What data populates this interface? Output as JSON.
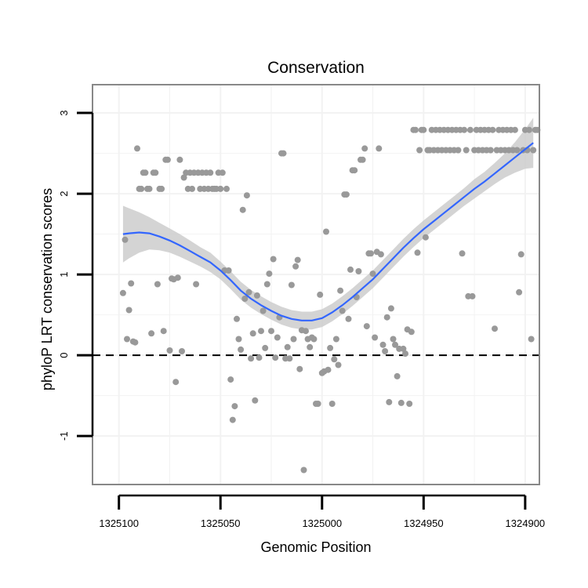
{
  "chart_data": {
    "type": "scatter",
    "title": "Conservation",
    "xlabel": "Genomic Position",
    "ylabel": "phyloP LRT conservation scores",
    "x_reversed": true,
    "xlim": [
      1325113,
      1324893
    ],
    "ylim": [
      -1.6,
      3.35
    ],
    "xticks": [
      1325100,
      1325050,
      1325000,
      1324950,
      1324900
    ],
    "xtick_labels": [
      "1325100",
      "1325050",
      "1325000",
      "1324950",
      "1324900"
    ],
    "yticks": [
      -1,
      0,
      1,
      2,
      3
    ],
    "ytick_labels": [
      "-1",
      "0",
      "1",
      "2",
      "3"
    ],
    "grid": true,
    "reference_line": {
      "y": 0,
      "style": "dashed"
    },
    "colors": {
      "points": "#999999",
      "smooth": "#3366ff",
      "band": "#cccccc",
      "panel_border": "#888888",
      "grid": "#f2f2f2"
    },
    "series": [
      {
        "type": "scatter",
        "points": [
          [
            1325098,
            0.77
          ],
          [
            1325097,
            1.43
          ],
          [
            1325096,
            0.2
          ],
          [
            1325095,
            0.56
          ],
          [
            1325094,
            0.89
          ],
          [
            1325093,
            0.17
          ],
          [
            1325092,
            0.16
          ],
          [
            1325091,
            2.56
          ],
          [
            1325090,
            2.06
          ],
          [
            1325089,
            2.06
          ],
          [
            1325088,
            2.26
          ],
          [
            1325087,
            2.26
          ],
          [
            1325086,
            2.06
          ],
          [
            1325085,
            2.06
          ],
          [
            1325084,
            0.27
          ],
          [
            1325083,
            2.26
          ],
          [
            1325082,
            2.26
          ],
          [
            1325081,
            0.88
          ],
          [
            1325080,
            2.06
          ],
          [
            1325079,
            2.06
          ],
          [
            1325078,
            0.3
          ],
          [
            1325077,
            2.42
          ],
          [
            1325076,
            2.42
          ],
          [
            1325075,
            0.06
          ],
          [
            1325074,
            0.95
          ],
          [
            1325073,
            0.94
          ],
          [
            1325072,
            -0.33
          ],
          [
            1325071,
            0.96
          ],
          [
            1325070,
            2.42
          ],
          [
            1325069,
            0.05
          ],
          [
            1325068,
            2.2
          ],
          [
            1325067,
            2.26
          ],
          [
            1325066,
            2.06
          ],
          [
            1325065,
            2.26
          ],
          [
            1325064,
            2.06
          ],
          [
            1325063,
            2.26
          ],
          [
            1325062,
            0.88
          ],
          [
            1325061,
            2.26
          ],
          [
            1325060,
            2.06
          ],
          [
            1325059,
            2.26
          ],
          [
            1325058,
            2.06
          ],
          [
            1325057,
            2.26
          ],
          [
            1325056,
            2.06
          ],
          [
            1325055,
            2.26
          ],
          [
            1325054,
            2.06
          ],
          [
            1325053,
            2.06
          ],
          [
            1325052,
            2.06
          ],
          [
            1325051,
            2.26
          ],
          [
            1325050,
            2.06
          ],
          [
            1325049,
            2.26
          ],
          [
            1325048,
            1.05
          ],
          [
            1325047,
            2.06
          ],
          [
            1325046,
            1.05
          ],
          [
            1325045,
            -0.3
          ],
          [
            1325044,
            -0.8
          ],
          [
            1325043,
            -0.63
          ],
          [
            1325042,
            0.45
          ],
          [
            1325041,
            0.2
          ],
          [
            1325040,
            0.07
          ],
          [
            1325039,
            1.8
          ],
          [
            1325038,
            0.7
          ],
          [
            1325037,
            1.98
          ],
          [
            1325036,
            0.78
          ],
          [
            1325035,
            -0.04
          ],
          [
            1325034,
            0.27
          ],
          [
            1325033,
            -0.56
          ],
          [
            1325032,
            0.74
          ],
          [
            1325031,
            -0.03
          ],
          [
            1325030,
            0.3
          ],
          [
            1325029,
            0.55
          ],
          [
            1325028,
            0.09
          ],
          [
            1325027,
            0.88
          ],
          [
            1325026,
            1.01
          ],
          [
            1325025,
            0.3
          ],
          [
            1325024,
            1.19
          ],
          [
            1325023,
            -0.03
          ],
          [
            1325022,
            0.22
          ],
          [
            1325021,
            0.47
          ],
          [
            1325020,
            2.5
          ],
          [
            1325019,
            2.5
          ],
          [
            1325018,
            -0.04
          ],
          [
            1325017,
            0.1
          ],
          [
            1325016,
            -0.04
          ],
          [
            1325015,
            0.87
          ],
          [
            1325014,
            0.2
          ],
          [
            1325013,
            1.1
          ],
          [
            1325012,
            1.18
          ],
          [
            1325011,
            -0.17
          ],
          [
            1325010,
            0.31
          ],
          [
            1325009,
            -1.42
          ],
          [
            1325008,
            0.3
          ],
          [
            1325007,
            0.2
          ],
          [
            1325006,
            0.1
          ],
          [
            1325005,
            0.22
          ],
          [
            1325004,
            0.2
          ],
          [
            1325003,
            -0.6
          ],
          [
            1325002,
            -0.6
          ],
          [
            1325001,
            0.75
          ],
          [
            1325000,
            -0.22
          ],
          [
            1324999,
            -0.2
          ],
          [
            1324998,
            1.53
          ],
          [
            1324997,
            -0.18
          ],
          [
            1324996,
            0.09
          ],
          [
            1324995,
            -0.6
          ],
          [
            1324994,
            -0.05
          ],
          [
            1324993,
            0.2
          ],
          [
            1324992,
            -0.12
          ],
          [
            1324991,
            0.8
          ],
          [
            1324990,
            0.55
          ],
          [
            1324989,
            1.99
          ],
          [
            1324988,
            1.99
          ],
          [
            1324987,
            0.45
          ],
          [
            1324986,
            1.06
          ],
          [
            1324985,
            2.29
          ],
          [
            1324984,
            2.29
          ],
          [
            1324983,
            0.72
          ],
          [
            1324982,
            1.04
          ],
          [
            1324981,
            2.42
          ],
          [
            1324980,
            2.42
          ],
          [
            1324979,
            2.56
          ],
          [
            1324978,
            0.36
          ],
          [
            1324977,
            1.26
          ],
          [
            1324976,
            1.26
          ],
          [
            1324975,
            1.01
          ],
          [
            1324974,
            0.22
          ],
          [
            1324973,
            1.28
          ],
          [
            1324972,
            2.56
          ],
          [
            1324971,
            1.25
          ],
          [
            1324970,
            0.13
          ],
          [
            1324969,
            0.05
          ],
          [
            1324968,
            0.47
          ],
          [
            1324967,
            -0.58
          ],
          [
            1324966,
            0.58
          ],
          [
            1324965,
            0.2
          ],
          [
            1324964,
            0.13
          ],
          [
            1324963,
            -0.26
          ],
          [
            1324962,
            0.08
          ],
          [
            1324961,
            -0.59
          ],
          [
            1324960,
            0.08
          ],
          [
            1324959,
            0.02
          ],
          [
            1324958,
            0.32
          ],
          [
            1324957,
            -0.6
          ],
          [
            1324956,
            0.29
          ],
          [
            1324955,
            2.79
          ],
          [
            1324954,
            2.79
          ],
          [
            1324953,
            1.27
          ],
          [
            1324952,
            2.54
          ],
          [
            1324951,
            2.79
          ],
          [
            1324950,
            2.79
          ],
          [
            1324949,
            1.46
          ],
          [
            1324948,
            2.54
          ],
          [
            1324947,
            2.54
          ],
          [
            1324946,
            2.79
          ],
          [
            1324945,
            2.54
          ],
          [
            1324944,
            2.79
          ],
          [
            1324943,
            2.54
          ],
          [
            1324942,
            2.79
          ],
          [
            1324941,
            2.54
          ],
          [
            1324940,
            2.79
          ],
          [
            1324939,
            2.54
          ],
          [
            1324938,
            2.79
          ],
          [
            1324937,
            2.54
          ],
          [
            1324936,
            2.79
          ],
          [
            1324935,
            2.54
          ],
          [
            1324934,
            2.79
          ],
          [
            1324933,
            2.54
          ],
          [
            1324932,
            2.79
          ],
          [
            1324931,
            1.26
          ],
          [
            1324930,
            2.79
          ],
          [
            1324929,
            2.54
          ],
          [
            1324928,
            0.73
          ],
          [
            1324927,
            2.79
          ],
          [
            1324926,
            0.73
          ],
          [
            1324925,
            2.54
          ],
          [
            1324924,
            2.79
          ],
          [
            1324923,
            2.54
          ],
          [
            1324922,
            2.79
          ],
          [
            1324921,
            2.54
          ],
          [
            1324920,
            2.79
          ],
          [
            1324919,
            2.54
          ],
          [
            1324918,
            2.79
          ],
          [
            1324917,
            2.54
          ],
          [
            1324916,
            2.79
          ],
          [
            1324915,
            0.33
          ],
          [
            1324914,
            2.54
          ],
          [
            1324913,
            2.79
          ],
          [
            1324912,
            2.54
          ],
          [
            1324911,
            2.79
          ],
          [
            1324910,
            2.54
          ],
          [
            1324909,
            2.79
          ],
          [
            1324908,
            2.54
          ],
          [
            1324907,
            2.79
          ],
          [
            1324906,
            2.54
          ],
          [
            1324905,
            2.79
          ],
          [
            1324904,
            2.54
          ],
          [
            1324903,
            0.78
          ],
          [
            1324902,
            1.25
          ],
          [
            1324901,
            2.54
          ],
          [
            1324900,
            2.79
          ],
          [
            1324899,
            2.54
          ],
          [
            1324898,
            2.79
          ],
          [
            1324897,
            0.2
          ],
          [
            1324896,
            2.54
          ],
          [
            1324895,
            2.79
          ],
          [
            1324894,
            2.79
          ]
        ]
      },
      {
        "type": "smooth",
        "points": [
          [
            1325098,
            1.5
          ],
          [
            1325095,
            1.51
          ],
          [
            1325090,
            1.52
          ],
          [
            1325085,
            1.51
          ],
          [
            1325080,
            1.47
          ],
          [
            1325075,
            1.42
          ],
          [
            1325070,
            1.36
          ],
          [
            1325065,
            1.29
          ],
          [
            1325060,
            1.22
          ],
          [
            1325055,
            1.15
          ],
          [
            1325050,
            1.05
          ],
          [
            1325045,
            0.93
          ],
          [
            1325040,
            0.8
          ],
          [
            1325035,
            0.7
          ],
          [
            1325030,
            0.62
          ],
          [
            1325025,
            0.55
          ],
          [
            1325020,
            0.49
          ],
          [
            1325015,
            0.45
          ],
          [
            1325010,
            0.43
          ],
          [
            1325005,
            0.43
          ],
          [
            1325000,
            0.46
          ],
          [
            1324995,
            0.53
          ],
          [
            1324990,
            0.62
          ],
          [
            1324985,
            0.72
          ],
          [
            1324980,
            0.83
          ],
          [
            1324975,
            0.94
          ],
          [
            1324970,
            1.07
          ],
          [
            1324965,
            1.2
          ],
          [
            1324960,
            1.33
          ],
          [
            1324955,
            1.45
          ],
          [
            1324950,
            1.56
          ],
          [
            1324945,
            1.66
          ],
          [
            1324940,
            1.76
          ],
          [
            1324935,
            1.86
          ],
          [
            1324930,
            1.96
          ],
          [
            1324925,
            2.06
          ],
          [
            1324920,
            2.15
          ],
          [
            1324915,
            2.25
          ],
          [
            1324910,
            2.35
          ],
          [
            1324905,
            2.45
          ],
          [
            1324900,
            2.55
          ],
          [
            1324896,
            2.63
          ]
        ],
        "lower": [
          1.15,
          1.2,
          1.27,
          1.31,
          1.3,
          1.27,
          1.22,
          1.16,
          1.1,
          1.03,
          0.94,
          0.82,
          0.69,
          0.59,
          0.51,
          0.44,
          0.38,
          0.34,
          0.32,
          0.32,
          0.35,
          0.42,
          0.51,
          0.61,
          0.72,
          0.83,
          0.96,
          1.09,
          1.22,
          1.34,
          1.45,
          1.55,
          1.65,
          1.75,
          1.85,
          1.94,
          2.03,
          2.12,
          2.2,
          2.26,
          2.31,
          2.32
        ],
        "upper": [
          1.85,
          1.82,
          1.77,
          1.71,
          1.64,
          1.57,
          1.5,
          1.42,
          1.34,
          1.27,
          1.16,
          1.04,
          0.91,
          0.81,
          0.73,
          0.66,
          0.6,
          0.56,
          0.54,
          0.54,
          0.57,
          0.64,
          0.73,
          0.83,
          0.94,
          1.05,
          1.18,
          1.31,
          1.44,
          1.56,
          1.67,
          1.77,
          1.87,
          1.97,
          2.07,
          2.18,
          2.27,
          2.38,
          2.5,
          2.64,
          2.8,
          2.94
        ]
      }
    ]
  }
}
